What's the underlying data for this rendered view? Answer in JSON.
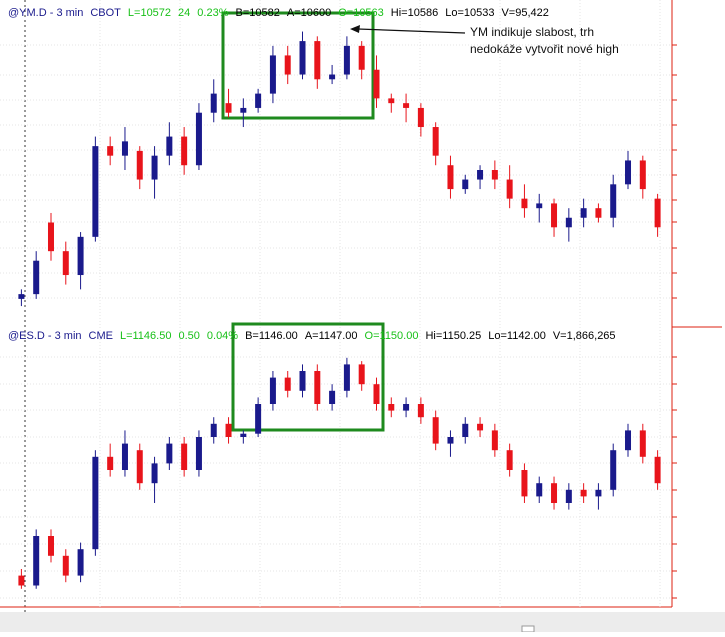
{
  "chart_data": [
    {
      "type": "candlestick",
      "header": [
        {
          "text": "@YM.D - 3 min",
          "color": "#1a1a8c"
        },
        {
          "text": "CBOT",
          "color": "#1a1a8c"
        },
        {
          "text": "L=10572",
          "color": "#18c018"
        },
        {
          "text": "24",
          "color": "#18c018"
        },
        {
          "text": "0.23%",
          "color": "#18c018"
        },
        {
          "text": "B=10582",
          "color": "#000000"
        },
        {
          "text": "A=10600",
          "color": "#000000"
        },
        {
          "text": "O=10563",
          "color": "#18c018"
        },
        {
          "text": "Hi=10586",
          "color": "#000000"
        },
        {
          "text": "Lo=10533",
          "color": "#000000"
        },
        {
          "text": "V=95,422",
          "color": "#000000"
        }
      ],
      "annotation": [
        "YM indikuje slabost, trh",
        "nedokáže vytvořit nové high"
      ],
      "up_color": "#1a1a8c",
      "down_color": "#e8141b",
      "ylim": [
        10476,
        10600
      ],
      "open": [
        10484,
        10486,
        10516,
        10504,
        10494,
        10510,
        10548,
        10544,
        10546,
        10534,
        10544,
        10552,
        10540,
        10562,
        10566,
        10562,
        10564,
        10570,
        10586,
        10578,
        10592,
        10576,
        10578,
        10590,
        10580,
        10568,
        10566,
        10564,
        10556,
        10540,
        10530,
        10534,
        10538,
        10534,
        10526,
        10522,
        10524,
        10514,
        10518,
        10522,
        10518,
        10532,
        10542,
        10526
      ],
      "high": [
        10488,
        10504,
        10520,
        10508,
        10512,
        10552,
        10552,
        10556,
        10548,
        10548,
        10558,
        10556,
        10566,
        10576,
        10572,
        10568,
        10572,
        10590,
        10590,
        10596,
        10594,
        10582,
        10594,
        10592,
        10586,
        10570,
        10570,
        10566,
        10558,
        10544,
        10536,
        10540,
        10542,
        10540,
        10532,
        10528,
        10526,
        10522,
        10526,
        10524,
        10536,
        10546,
        10544,
        10528
      ],
      "low": [
        10481,
        10484,
        10500,
        10490,
        10488,
        10508,
        10540,
        10538,
        10530,
        10526,
        10540,
        10536,
        10538,
        10558,
        10560,
        10556,
        10562,
        10566,
        10574,
        10576,
        10572,
        10574,
        10576,
        10576,
        10564,
        10562,
        10558,
        10552,
        10540,
        10526,
        10528,
        10530,
        10530,
        10522,
        10518,
        10516,
        10510,
        10508,
        10514,
        10516,
        10514,
        10530,
        10526,
        10510
      ],
      "close": [
        10486,
        10500,
        10504,
        10494,
        10510,
        10548,
        10544,
        10550,
        10534,
        10544,
        10552,
        10540,
        10562,
        10570,
        10562,
        10564,
        10570,
        10586,
        10578,
        10592,
        10576,
        10578,
        10590,
        10580,
        10568,
        10566,
        10564,
        10556,
        10544,
        10530,
        10534,
        10538,
        10534,
        10526,
        10522,
        10524,
        10514,
        10518,
        10522,
        10518,
        10532,
        10542,
        10530,
        10514
      ]
    },
    {
      "type": "candlestick",
      "header": [
        {
          "text": "@ES.D - 3 min",
          "color": "#1a1a8c"
        },
        {
          "text": "CME",
          "color": "#1a1a8c"
        },
        {
          "text": "L=1146.50",
          "color": "#18c018"
        },
        {
          "text": "0.50",
          "color": "#18c018"
        },
        {
          "text": "0.04%",
          "color": "#18c018"
        },
        {
          "text": "B=1146.00",
          "color": "#000000"
        },
        {
          "text": "A=1147.00",
          "color": "#000000"
        },
        {
          "text": "O=1150.00",
          "color": "#18c018"
        },
        {
          "text": "Hi=1150.25",
          "color": "#000000"
        },
        {
          "text": "Lo=1142.00",
          "color": "#000000"
        },
        {
          "text": "V=1,866,265",
          "color": "#000000"
        }
      ],
      "up_color": "#1a1a8c",
      "down_color": "#e8141b",
      "ylim": [
        1132,
        1152
      ],
      "open": [
        1134,
        1133.25,
        1137,
        1135.5,
        1134,
        1136,
        1143,
        1142,
        1143.5,
        1141,
        1142.5,
        1144,
        1142,
        1144.5,
        1145.5,
        1144.5,
        1144.75,
        1147,
        1149,
        1148,
        1149.5,
        1147,
        1148,
        1150,
        1148.5,
        1147,
        1146.5,
        1147,
        1146,
        1144,
        1144.5,
        1145.5,
        1145,
        1143.5,
        1142,
        1140,
        1141,
        1139.5,
        1140.5,
        1140,
        1140.5,
        1143.5,
        1145,
        1143
      ],
      "high": [
        1134.5,
        1137.5,
        1137.5,
        1136,
        1136.5,
        1143.5,
        1144,
        1145,
        1144,
        1143,
        1144.5,
        1144.5,
        1145,
        1146,
        1146,
        1145,
        1147.5,
        1149.5,
        1149.5,
        1150,
        1150,
        1148.5,
        1150.5,
        1150.25,
        1149,
        1147.5,
        1147.5,
        1147.5,
        1146.5,
        1145,
        1146,
        1146,
        1145.5,
        1144,
        1142.5,
        1141.5,
        1141.5,
        1141,
        1141,
        1141,
        1144,
        1145.5,
        1145.5,
        1143.5
      ],
      "low": [
        1133,
        1133,
        1135,
        1133.5,
        1133.5,
        1135.5,
        1141.5,
        1141.5,
        1140.5,
        1139.5,
        1142,
        1141.5,
        1141.5,
        1144,
        1144,
        1144,
        1144.5,
        1146.5,
        1147.5,
        1147.5,
        1146.5,
        1146.5,
        1147.5,
        1148,
        1146.5,
        1146,
        1146,
        1145.5,
        1143.5,
        1143,
        1144,
        1144.5,
        1143,
        1141.5,
        1139.5,
        1139.5,
        1139,
        1139,
        1139.5,
        1139,
        1140,
        1143,
        1142.5,
        1140.5
      ],
      "close": [
        1133.25,
        1137,
        1135.5,
        1134,
        1136,
        1143,
        1142,
        1144,
        1141,
        1142.5,
        1144,
        1142,
        1144.5,
        1145.5,
        1144.5,
        1144.75,
        1147,
        1149,
        1148,
        1149.5,
        1147,
        1148,
        1150,
        1148.5,
        1147,
        1146.5,
        1147,
        1146,
        1144,
        1144.5,
        1145.5,
        1145,
        1143.5,
        1142,
        1140,
        1141,
        1139.5,
        1140.5,
        1140,
        1140.5,
        1143.5,
        1145,
        1143,
        1141
      ]
    }
  ]
}
